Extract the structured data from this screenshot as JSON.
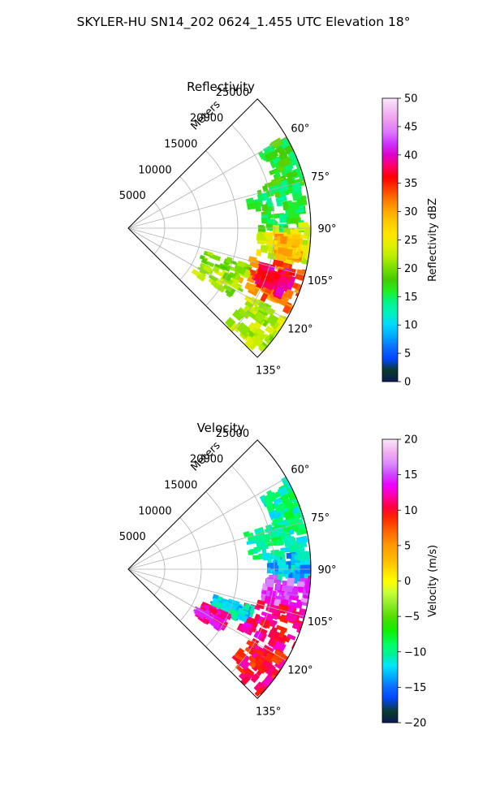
{
  "figure_title": "SKYLER-HU  SN14_202  0624_1.455 UTC Elevation 18°",
  "chart_data": [
    {
      "type": "heatmap",
      "projection": "polar-sector",
      "title": "Reflectivity",
      "radial_label": "Meters",
      "range_ticks": [
        5000,
        10000,
        15000,
        20000,
        25000
      ],
      "range_tick_labels": [
        "5000",
        "10000",
        "15000",
        "20000",
        "25000"
      ],
      "azimuth_ticks": [
        60,
        75,
        90,
        105,
        120,
        135
      ],
      "azimuth_tick_labels": [
        "60°",
        "75°",
        "90°",
        "105°",
        "120°",
        "135°"
      ],
      "azimuth_range": [
        45,
        135
      ],
      "max_range": 25000,
      "grid": true,
      "colorbar": {
        "label": "Reflectivity dBZ",
        "min": 0,
        "max": 50,
        "ticks": [
          0,
          5,
          10,
          15,
          20,
          25,
          30,
          35,
          40,
          45,
          50
        ],
        "tick_labels": [
          "0",
          "5",
          "10",
          "15",
          "20",
          "25",
          "30",
          "35",
          "40",
          "45",
          "50"
        ],
        "stops": [
          [
            0,
            "#0b1a55"
          ],
          [
            2,
            "#0a3a2a"
          ],
          [
            4,
            "#0047ff"
          ],
          [
            6,
            "#0b6cff"
          ],
          [
            8,
            "#00aaff"
          ],
          [
            10,
            "#00d8ff"
          ],
          [
            12,
            "#00f0c0"
          ],
          [
            14,
            "#00f58a"
          ],
          [
            16,
            "#22ee22"
          ],
          [
            18,
            "#44cc00"
          ],
          [
            20,
            "#77dd00"
          ],
          [
            22,
            "#b7ec00"
          ],
          [
            24,
            "#e0f000"
          ],
          [
            26,
            "#ffe600"
          ],
          [
            28,
            "#ffcc00"
          ],
          [
            30,
            "#ffaa00"
          ],
          [
            32,
            "#ff7a00"
          ],
          [
            34,
            "#ff3c00"
          ],
          [
            36,
            "#ff0000"
          ],
          [
            38,
            "#ff0066"
          ],
          [
            40,
            "#dd00cc"
          ],
          [
            42,
            "#cc33ff"
          ],
          [
            44,
            "#dd77ff"
          ],
          [
            46,
            "#ee99ee"
          ],
          [
            48,
            "#f4c0f4"
          ],
          [
            50,
            "#fbe8fb"
          ]
        ]
      },
      "echo_regions": [
        {
          "az": [
            59,
            76
          ],
          "r": [
            20500,
            25000
          ],
          "value": 17
        },
        {
          "az": [
            72,
            90
          ],
          "r": [
            16500,
            23500
          ],
          "value": 16
        },
        {
          "az": [
            88,
            100
          ],
          "r": [
            17500,
            25000
          ],
          "value": 24
        },
        {
          "az": [
            92,
            99
          ],
          "r": [
            20000,
            23000
          ],
          "value": 29
        },
        {
          "az": [
            102,
            116
          ],
          "r": [
            16500,
            25000
          ],
          "value": 32
        },
        {
          "az": [
            104,
            112
          ],
          "r": [
            18500,
            22500
          ],
          "value": 38
        },
        {
          "az": [
            118,
            132
          ],
          "r": [
            18500,
            25000
          ],
          "value": 22
        },
        {
          "az": [
            106,
            123
          ],
          "r": [
            10500,
            17000
          ],
          "value": 21
        }
      ]
    },
    {
      "type": "heatmap",
      "projection": "polar-sector",
      "title": "Velocity",
      "radial_label": "Meters",
      "range_ticks": [
        5000,
        10000,
        15000,
        20000,
        25000
      ],
      "range_tick_labels": [
        "5000",
        "10000",
        "15000",
        "20000",
        "25000"
      ],
      "azimuth_ticks": [
        60,
        75,
        90,
        105,
        120,
        135
      ],
      "azimuth_tick_labels": [
        "60°",
        "75°",
        "90°",
        "105°",
        "120°",
        "135°"
      ],
      "azimuth_range": [
        45,
        135
      ],
      "max_range": 25000,
      "grid": true,
      "colorbar": {
        "label": "Velocity (m/s)",
        "min": -20,
        "max": 20,
        "ticks": [
          -20,
          -15,
          -10,
          -5,
          0,
          5,
          10,
          15,
          20
        ],
        "tick_labels": [
          "−20",
          "−15",
          "−10",
          "−5",
          "0",
          "5",
          "10",
          "15",
          "20"
        ],
        "stops": [
          [
            -20,
            "#0b1a55"
          ],
          [
            -18.5,
            "#0a3a2a"
          ],
          [
            -16.5,
            "#0047ff"
          ],
          [
            -15,
            "#0b6cff"
          ],
          [
            -13.5,
            "#00aaff"
          ],
          [
            -12,
            "#00e5ff"
          ],
          [
            -10.5,
            "#00f0a0"
          ],
          [
            -9,
            "#00ff66"
          ],
          [
            -7,
            "#11ee00"
          ],
          [
            -5,
            "#55dd00"
          ],
          [
            -3,
            "#99ee33"
          ],
          [
            -1.5,
            "#ccff33"
          ],
          [
            0,
            "#ffff00"
          ],
          [
            1.5,
            "#ffdd00"
          ],
          [
            3,
            "#ffbb00"
          ],
          [
            5,
            "#ff9900"
          ],
          [
            7,
            "#ff6600"
          ],
          [
            9,
            "#ff2200"
          ],
          [
            10.5,
            "#ff0044"
          ],
          [
            12,
            "#ff00aa"
          ],
          [
            13.5,
            "#ee00ff"
          ],
          [
            15,
            "#cc44ff"
          ],
          [
            16.5,
            "#dd88ff"
          ],
          [
            18,
            "#eeaaee"
          ],
          [
            20,
            "#fbe8fb"
          ]
        ]
      },
      "echo_regions": [
        {
          "az": [
            59,
            76
          ],
          "r": [
            20500,
            25000
          ],
          "value": -10
        },
        {
          "az": [
            72,
            84
          ],
          "r": [
            16500,
            23500
          ],
          "value": -10
        },
        {
          "az": [
            84,
            92
          ],
          "r": [
            19000,
            25000
          ],
          "value": -13
        },
        {
          "az": [
            92,
            102
          ],
          "r": [
            18500,
            25000
          ],
          "value": 15
        },
        {
          "az": [
            102,
            116
          ],
          "r": [
            16500,
            25000
          ],
          "value": 11
        },
        {
          "az": [
            118,
            132
          ],
          "r": [
            18500,
            25000
          ],
          "value": 10
        },
        {
          "az": [
            106,
            113
          ],
          "r": [
            12000,
            17000
          ],
          "value": -12
        },
        {
          "az": [
            113,
            123
          ],
          "r": [
            10500,
            14500
          ],
          "value": 12
        }
      ]
    }
  ]
}
